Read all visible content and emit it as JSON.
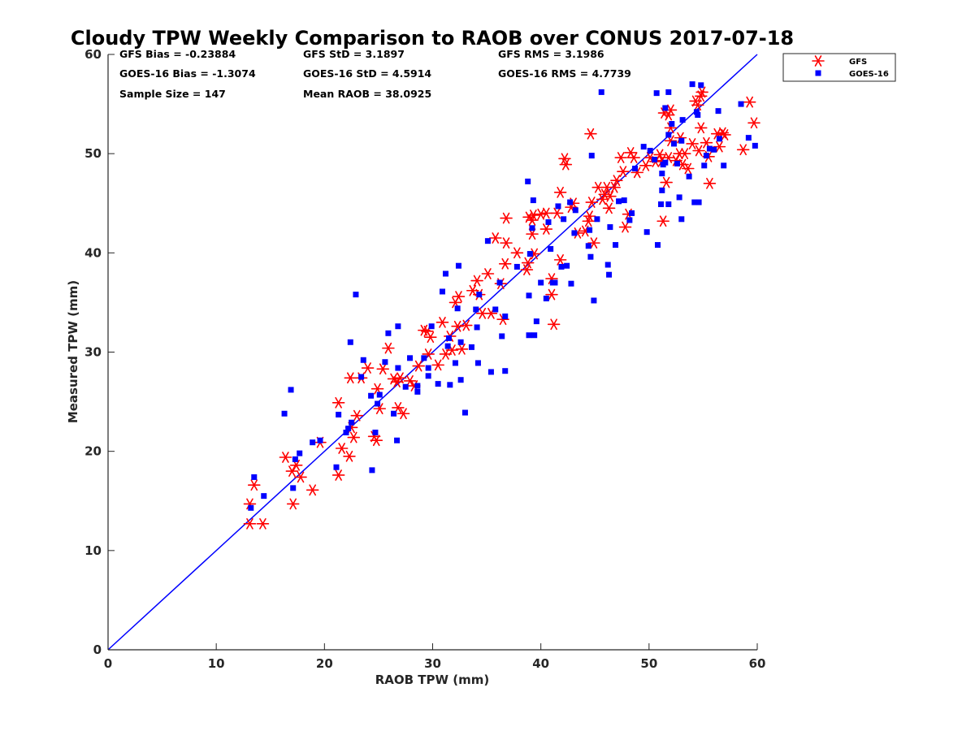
{
  "chart_data": {
    "type": "scatter",
    "title": "Cloudy TPW Weekly Comparison to RAOB over CONUS 2017-07-18",
    "xlabel": "RAOB TPW (mm)",
    "ylabel": "Measured TPW (mm)",
    "xlim": [
      0,
      60
    ],
    "ylim": [
      0,
      60
    ],
    "xticks": [
      "0",
      "10",
      "20",
      "30",
      "40",
      "50",
      "60"
    ],
    "yticks": [
      "0",
      "10",
      "20",
      "30",
      "40",
      "50",
      "60"
    ],
    "grid": false,
    "legend_position": "outside-top-right",
    "reference_line": {
      "from": [
        0,
        0
      ],
      "to": [
        60,
        60
      ],
      "color": "#0000ff"
    },
    "stats": [
      [
        "GFS Bias = -0.23884",
        "GFS StD = 3.1897",
        "GFS RMS = 3.1986"
      ],
      [
        "GOES-16 Bias = -1.3074",
        "GOES-16 StD = 4.5914",
        "GOES-16 RMS = 4.7739"
      ],
      [
        "Sample Size = 147",
        "Mean RAOB = 38.0925",
        ""
      ]
    ],
    "series": [
      {
        "name": "GFS",
        "marker": "asterisk",
        "color": "#ff0000",
        "points": [
          [
            13.1,
            12.7
          ],
          [
            14.3,
            12.7
          ],
          [
            13.1,
            14.7
          ],
          [
            13.5,
            16.6
          ],
          [
            16.4,
            19.4
          ],
          [
            17.0,
            18.0
          ],
          [
            17.4,
            18.6
          ],
          [
            17.1,
            14.7
          ],
          [
            17.8,
            17.4
          ],
          [
            18.9,
            16.1
          ],
          [
            19.6,
            20.9
          ],
          [
            21.3,
            17.6
          ],
          [
            21.3,
            24.9
          ],
          [
            21.6,
            20.3
          ],
          [
            22.3,
            19.5
          ],
          [
            22.4,
            27.4
          ],
          [
            22.5,
            22.4
          ],
          [
            22.7,
            21.4
          ],
          [
            23.0,
            23.6
          ],
          [
            23.4,
            27.4
          ],
          [
            24.0,
            28.4
          ],
          [
            24.6,
            21.5
          ],
          [
            24.8,
            21.1
          ],
          [
            24.9,
            26.3
          ],
          [
            25.1,
            24.3
          ],
          [
            25.4,
            28.3
          ],
          [
            25.9,
            30.4
          ],
          [
            26.4,
            27.3
          ],
          [
            26.7,
            27.0
          ],
          [
            26.8,
            24.4
          ],
          [
            27.0,
            27.4
          ],
          [
            27.3,
            23.8
          ],
          [
            27.9,
            27.1
          ],
          [
            28.3,
            26.6
          ],
          [
            28.7,
            28.6
          ],
          [
            29.2,
            32.2
          ],
          [
            29.6,
            29.8
          ],
          [
            29.5,
            32.1
          ],
          [
            29.8,
            31.5
          ],
          [
            30.5,
            28.7
          ],
          [
            30.9,
            33.0
          ],
          [
            31.2,
            29.8
          ],
          [
            31.6,
            31.6
          ],
          [
            31.8,
            30.2
          ],
          [
            32.1,
            35.0
          ],
          [
            32.3,
            32.6
          ],
          [
            32.4,
            35.6
          ],
          [
            32.7,
            30.3
          ],
          [
            33.1,
            32.7
          ],
          [
            33.7,
            36.2
          ],
          [
            34.1,
            37.2
          ],
          [
            34.3,
            35.8
          ],
          [
            34.6,
            33.9
          ],
          [
            35.1,
            37.9
          ],
          [
            35.4,
            33.9
          ],
          [
            35.8,
            41.5
          ],
          [
            36.3,
            36.9
          ],
          [
            36.7,
            38.9
          ],
          [
            36.8,
            43.5
          ],
          [
            36.8,
            41.0
          ],
          [
            36.5,
            33.3
          ],
          [
            37.8,
            40.0
          ],
          [
            38.8,
            39.0
          ],
          [
            38.7,
            38.3
          ],
          [
            38.9,
            43.6
          ],
          [
            39.2,
            41.9
          ],
          [
            39.3,
            43.8
          ],
          [
            39.2,
            43.3
          ],
          [
            39.4,
            39.9
          ],
          [
            40.0,
            43.9
          ],
          [
            40.5,
            44.0
          ],
          [
            40.5,
            42.4
          ],
          [
            41.0,
            35.8
          ],
          [
            41.0,
            37.4
          ],
          [
            41.2,
            32.8
          ],
          [
            41.5,
            44.0
          ],
          [
            41.8,
            46.1
          ],
          [
            41.8,
            39.3
          ],
          [
            42.2,
            49.5
          ],
          [
            42.3,
            48.9
          ],
          [
            42.8,
            44.6
          ],
          [
            43.0,
            45.0
          ],
          [
            43.4,
            42.0
          ],
          [
            44.1,
            42.2
          ],
          [
            44.4,
            43.2
          ],
          [
            44.5,
            43.7
          ],
          [
            44.7,
            45.1
          ],
          [
            44.9,
            41.0
          ],
          [
            44.6,
            52.0
          ],
          [
            45.3,
            46.6
          ],
          [
            45.7,
            45.4
          ],
          [
            45.9,
            45.9
          ],
          [
            46.1,
            46.6
          ],
          [
            46.3,
            44.5
          ],
          [
            46.4,
            45.7
          ],
          [
            46.8,
            46.6
          ],
          [
            47.0,
            47.3
          ],
          [
            47.4,
            49.6
          ],
          [
            47.6,
            48.2
          ],
          [
            47.8,
            42.6
          ],
          [
            48.1,
            43.9
          ],
          [
            48.3,
            50.1
          ],
          [
            48.6,
            49.6
          ],
          [
            48.9,
            48.1
          ],
          [
            49.7,
            48.8
          ],
          [
            50.1,
            49.6
          ],
          [
            50.6,
            49.2
          ],
          [
            51.0,
            49.9
          ],
          [
            51.2,
            49.3
          ],
          [
            51.3,
            43.2
          ],
          [
            51.4,
            54.1
          ],
          [
            51.6,
            47.1
          ],
          [
            51.8,
            53.9
          ],
          [
            51.8,
            49.6
          ],
          [
            52.0,
            54.4
          ],
          [
            52.0,
            52.6
          ],
          [
            52.0,
            51.3
          ],
          [
            52.5,
            49.3
          ],
          [
            52.8,
            50.0
          ],
          [
            52.9,
            51.6
          ],
          [
            53.1,
            48.9
          ],
          [
            53.3,
            50.0
          ],
          [
            53.6,
            48.5
          ],
          [
            54.0,
            51.0
          ],
          [
            54.3,
            55.3
          ],
          [
            54.5,
            54.9
          ],
          [
            54.6,
            50.3
          ],
          [
            54.8,
            52.6
          ],
          [
            54.8,
            55.8
          ],
          [
            54.9,
            56.2
          ],
          [
            55.3,
            51.1
          ],
          [
            55.5,
            49.7
          ],
          [
            55.6,
            47.0
          ],
          [
            56.3,
            52.0
          ],
          [
            56.5,
            50.7
          ],
          [
            56.8,
            52.1
          ],
          [
            57.0,
            51.9
          ],
          [
            58.7,
            50.4
          ],
          [
            59.3,
            55.2
          ],
          [
            59.7,
            53.1
          ]
        ]
      },
      {
        "name": "GOES-16",
        "marker": "square",
        "color": "#0000ff",
        "points": [
          [
            13.2,
            14.3
          ],
          [
            13.5,
            17.4
          ],
          [
            14.4,
            15.5
          ],
          [
            16.3,
            23.8
          ],
          [
            16.9,
            26.2
          ],
          [
            17.1,
            16.3
          ],
          [
            17.3,
            19.2
          ],
          [
            17.7,
            19.8
          ],
          [
            18.9,
            20.9
          ],
          [
            19.6,
            21.1
          ],
          [
            21.1,
            18.4
          ],
          [
            21.3,
            23.7
          ],
          [
            22.0,
            21.9
          ],
          [
            22.2,
            22.3
          ],
          [
            22.4,
            31.0
          ],
          [
            22.5,
            22.9
          ],
          [
            22.9,
            35.8
          ],
          [
            23.4,
            27.5
          ],
          [
            23.6,
            29.2
          ],
          [
            24.3,
            25.6
          ],
          [
            24.4,
            18.1
          ],
          [
            24.7,
            21.9
          ],
          [
            24.9,
            24.8
          ],
          [
            25.1,
            25.7
          ],
          [
            25.6,
            29.0
          ],
          [
            25.9,
            31.9
          ],
          [
            26.4,
            23.8
          ],
          [
            26.7,
            21.1
          ],
          [
            26.8,
            28.4
          ],
          [
            26.8,
            32.6
          ],
          [
            27.5,
            26.5
          ],
          [
            27.9,
            29.4
          ],
          [
            28.6,
            26.0
          ],
          [
            28.6,
            26.6
          ],
          [
            29.2,
            29.4
          ],
          [
            29.6,
            28.4
          ],
          [
            29.6,
            27.6
          ],
          [
            29.9,
            32.6
          ],
          [
            30.5,
            26.8
          ],
          [
            30.9,
            36.1
          ],
          [
            31.2,
            37.9
          ],
          [
            31.4,
            30.6
          ],
          [
            31.5,
            31.4
          ],
          [
            31.6,
            26.7
          ],
          [
            32.1,
            28.9
          ],
          [
            32.3,
            34.4
          ],
          [
            32.4,
            38.7
          ],
          [
            32.6,
            31.0
          ],
          [
            32.6,
            27.2
          ],
          [
            33.0,
            23.9
          ],
          [
            33.6,
            30.5
          ],
          [
            34.0,
            34.3
          ],
          [
            34.1,
            32.5
          ],
          [
            34.2,
            28.9
          ],
          [
            34.3,
            35.8
          ],
          [
            35.1,
            41.2
          ],
          [
            35.4,
            28.0
          ],
          [
            35.8,
            34.3
          ],
          [
            36.2,
            37.0
          ],
          [
            36.4,
            31.6
          ],
          [
            36.7,
            28.1
          ],
          [
            36.7,
            33.6
          ],
          [
            37.8,
            38.6
          ],
          [
            38.8,
            47.2
          ],
          [
            38.9,
            31.7
          ],
          [
            38.9,
            35.7
          ],
          [
            39.0,
            39.9
          ],
          [
            39.2,
            42.5
          ],
          [
            39.3,
            45.3
          ],
          [
            39.4,
            31.7
          ],
          [
            39.6,
            33.1
          ],
          [
            40.0,
            37.0
          ],
          [
            40.5,
            35.4
          ],
          [
            40.7,
            43.1
          ],
          [
            40.9,
            40.4
          ],
          [
            41.1,
            37.0
          ],
          [
            41.3,
            37.0
          ],
          [
            41.6,
            44.7
          ],
          [
            41.9,
            38.6
          ],
          [
            42.1,
            43.4
          ],
          [
            42.4,
            38.7
          ],
          [
            42.7,
            45.1
          ],
          [
            42.8,
            36.9
          ],
          [
            43.1,
            42.0
          ],
          [
            43.2,
            44.3
          ],
          [
            44.4,
            40.7
          ],
          [
            44.5,
            42.3
          ],
          [
            44.6,
            39.6
          ],
          [
            44.7,
            49.8
          ],
          [
            44.9,
            35.2
          ],
          [
            45.2,
            43.4
          ],
          [
            45.6,
            56.2
          ],
          [
            46.2,
            38.8
          ],
          [
            46.3,
            37.8
          ],
          [
            46.4,
            42.6
          ],
          [
            46.9,
            40.8
          ],
          [
            47.2,
            45.2
          ],
          [
            47.7,
            45.3
          ],
          [
            48.2,
            43.3
          ],
          [
            48.4,
            44.0
          ],
          [
            48.7,
            48.5
          ],
          [
            49.5,
            50.7
          ],
          [
            49.8,
            42.1
          ],
          [
            50.1,
            50.3
          ],
          [
            50.5,
            49.4
          ],
          [
            50.7,
            56.1
          ],
          [
            50.8,
            40.8
          ],
          [
            51.1,
            44.9
          ],
          [
            51.2,
            46.3
          ],
          [
            51.2,
            48.0
          ],
          [
            51.3,
            48.9
          ],
          [
            51.5,
            49.1
          ],
          [
            51.5,
            54.6
          ],
          [
            51.8,
            56.2
          ],
          [
            51.8,
            44.9
          ],
          [
            51.8,
            51.9
          ],
          [
            52.1,
            53.0
          ],
          [
            52.3,
            51.0
          ],
          [
            52.6,
            49.0
          ],
          [
            52.8,
            45.6
          ],
          [
            53.0,
            43.4
          ],
          [
            53.0,
            51.3
          ],
          [
            53.1,
            53.4
          ],
          [
            53.7,
            47.7
          ],
          [
            54.0,
            57.0
          ],
          [
            54.2,
            45.1
          ],
          [
            54.4,
            54.2
          ],
          [
            54.5,
            53.9
          ],
          [
            54.6,
            45.1
          ],
          [
            54.8,
            56.9
          ],
          [
            55.1,
            48.8
          ],
          [
            55.3,
            49.8
          ],
          [
            55.6,
            50.5
          ],
          [
            56.0,
            50.4
          ],
          [
            56.4,
            54.3
          ],
          [
            56.5,
            51.5
          ],
          [
            56.9,
            48.8
          ],
          [
            58.5,
            55.0
          ],
          [
            59.2,
            51.6
          ],
          [
            59.8,
            50.8
          ]
        ]
      }
    ]
  }
}
